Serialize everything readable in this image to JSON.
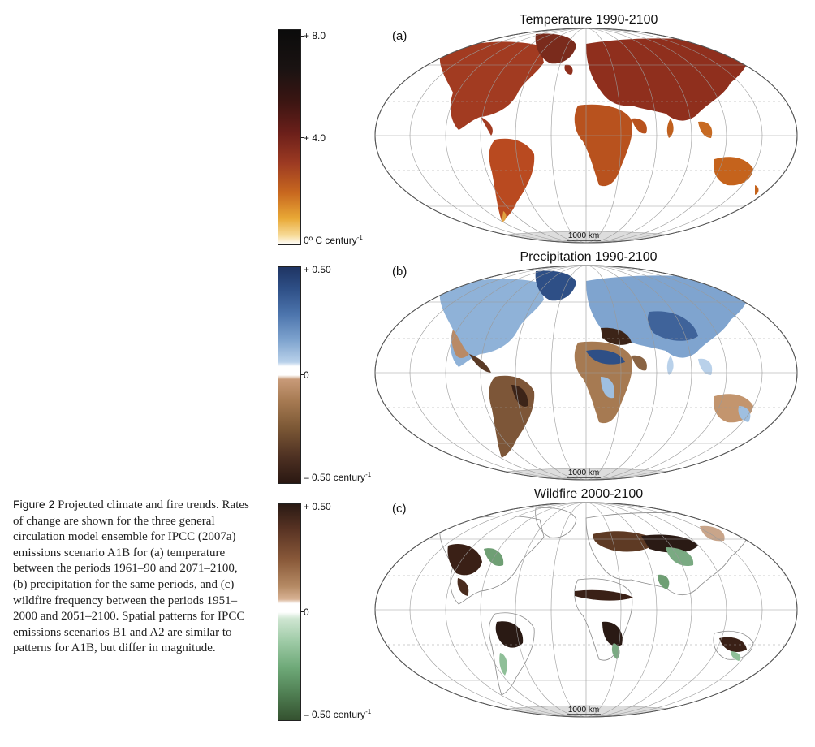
{
  "caption": {
    "lead": "Figure 2",
    "text": "Projected climate and fire trends. Rates of change are shown for the three general circulation model ensemble for IPCC (2007a) emissions scenario A1B for (a) temperature between the periods 1961–90 and 2071–2100, (b) precipitation for the same periods, and (c) wildfire frequency between the periods 1951–2000 and 2051–2100. Spatial patterns for IPCC emissions scenarios B1 and A2 are similar to patterns for A1B, but differ in magnitude."
  },
  "panels": [
    {
      "letter": "(a)",
      "title": "Temperature 1990-2100",
      "scale_label": "1000 km",
      "colorbar": {
        "top": "+ 8.0",
        "mid": "+ 4.0",
        "bottom": "0º C century",
        "bottom_exp": "-1"
      },
      "colors": {
        "ramp_high": "#111111",
        "ramp_mid": "#8a2a1c",
        "ramp_low": "#e8a431",
        "land": "#a13a20"
      }
    },
    {
      "letter": "(b)",
      "title": "Precipitation 1990-2100",
      "scale_label": "1000 km",
      "colorbar": {
        "top": "+ 0.50",
        "mid": "0",
        "bottom": "– 0.50 century",
        "bottom_exp": "-1"
      },
      "colors": {
        "wet": "#2e4f86",
        "dry": "#3b2218",
        "land": "#8fb2d8"
      }
    },
    {
      "letter": "(c)",
      "title": "Wildfire 2000-2100",
      "scale_label": "1000 km",
      "colorbar": {
        "top": "+ 0.50",
        "mid": "0",
        "bottom": "– 0.50 century",
        "bottom_exp": "-1"
      },
      "colors": {
        "increase": "#2a1a14",
        "decrease": "#3e5e3c"
      }
    }
  ]
}
